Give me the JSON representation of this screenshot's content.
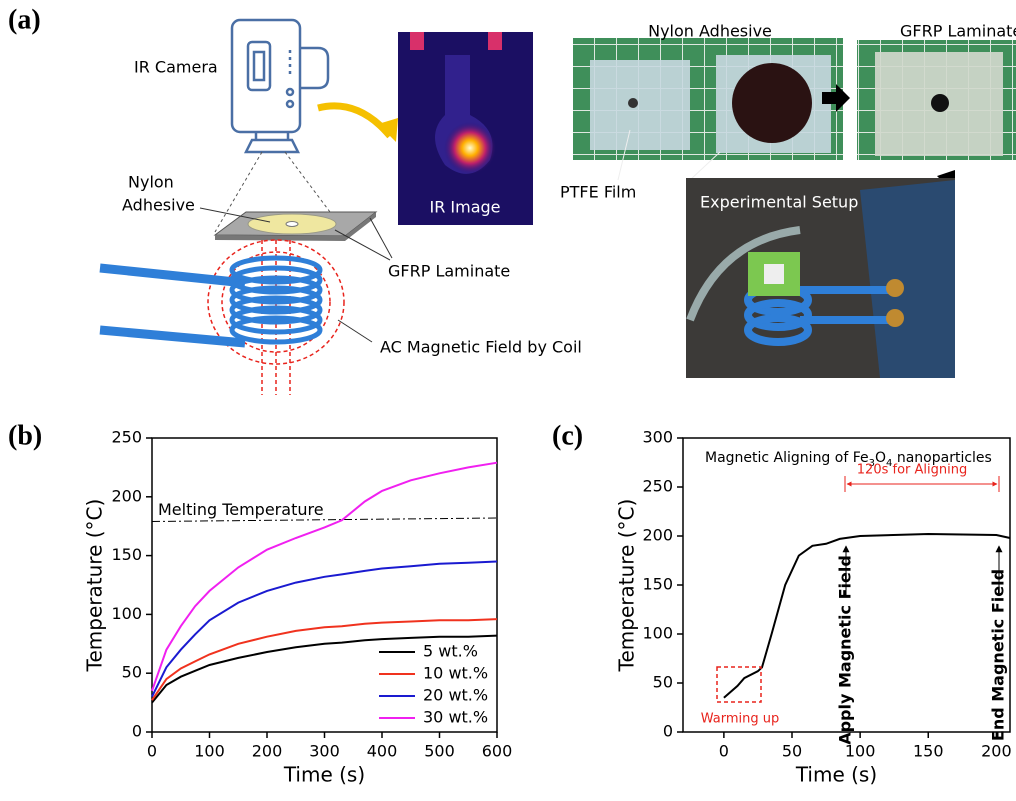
{
  "panel_a": {
    "label": "(a)",
    "ir_camera": "IR Camera",
    "ir_image": "IR Image",
    "nylon_adhesive_lines": [
      "Nylon",
      "Adhesive"
    ],
    "gfrp_laminate": "GFRP Laminate",
    "coil_field": "AC Magnetic Field by Coil",
    "photo_nylon_adhesive": "Nylon Adhesive",
    "photo_gfrp_laminate": "GFRP Laminate",
    "ptfe_film": "PTFE Film",
    "experimental_setup": "Experimental Setup"
  },
  "chart_data": [
    {
      "type": "line",
      "panel_label": "(b)",
      "x_label": "Time (s)",
      "y_label": "Temperature (°C)",
      "x": [
        0,
        25,
        50,
        75,
        100,
        150,
        200,
        250,
        300,
        330,
        370,
        400,
        450,
        500,
        550,
        600
      ],
      "series": [
        {
          "name": "5 wt.%",
          "color": "#000000",
          "values": [
            25,
            40,
            47,
            52,
            57,
            63,
            68,
            72,
            75,
            76,
            78,
            79,
            80,
            81,
            81,
            82
          ]
        },
        {
          "name": "10 wt.%",
          "color": "#f0321e",
          "values": [
            27,
            45,
            54,
            60,
            66,
            75,
            81,
            86,
            89,
            90,
            92,
            93,
            94,
            95,
            95,
            96
          ]
        },
        {
          "name": "20 wt.%",
          "color": "#1a1ad0",
          "values": [
            30,
            55,
            70,
            83,
            95,
            110,
            120,
            127,
            132,
            134,
            137,
            139,
            141,
            143,
            144,
            145
          ]
        },
        {
          "name": "30 wt.%",
          "color": "#f020f0",
          "values": [
            35,
            70,
            90,
            107,
            120,
            140,
            155,
            165,
            174,
            180,
            196,
            205,
            214,
            220,
            225,
            229
          ]
        }
      ],
      "reference_line": {
        "label": "Melting Temperature",
        "x": [
          0,
          600
        ],
        "values": [
          179,
          182
        ],
        "color": "#000000"
      },
      "xlim": [
        0,
        600
      ],
      "xticks": [
        0,
        100,
        200,
        300,
        400,
        500,
        600
      ],
      "ylim": [
        0,
        250
      ],
      "yticks": [
        0,
        50,
        100,
        150,
        200,
        250
      ],
      "legend": "lower right"
    },
    {
      "type": "line",
      "panel_label": "(c)",
      "title": [
        "Magnetic Aligning of Fe",
        "3",
        "O",
        "4",
        " nanoparticles"
      ],
      "x_label": "Time (s)",
      "y_label": "Temperature (°C)",
      "x": [
        0,
        10,
        15,
        25,
        28,
        35,
        45,
        55,
        65,
        75,
        85,
        100,
        150,
        200,
        210
      ],
      "values": [
        35,
        47,
        55,
        62,
        66,
        100,
        150,
        180,
        190,
        192,
        197,
        200,
        202,
        201,
        198
      ],
      "color": "#000000",
      "xlim": [
        -30,
        210
      ],
      "xticks": [
        0,
        50,
        100,
        150,
        200
      ],
      "ylim": [
        0,
        300
      ],
      "yticks": [
        0,
        50,
        100,
        150,
        200,
        250,
        300
      ],
      "annotations": {
        "aligning": "120s for Aligning",
        "apply": "Apply Magnetic Field",
        "end": "End Magnetic Field",
        "warming": "Warming up"
      }
    }
  ]
}
